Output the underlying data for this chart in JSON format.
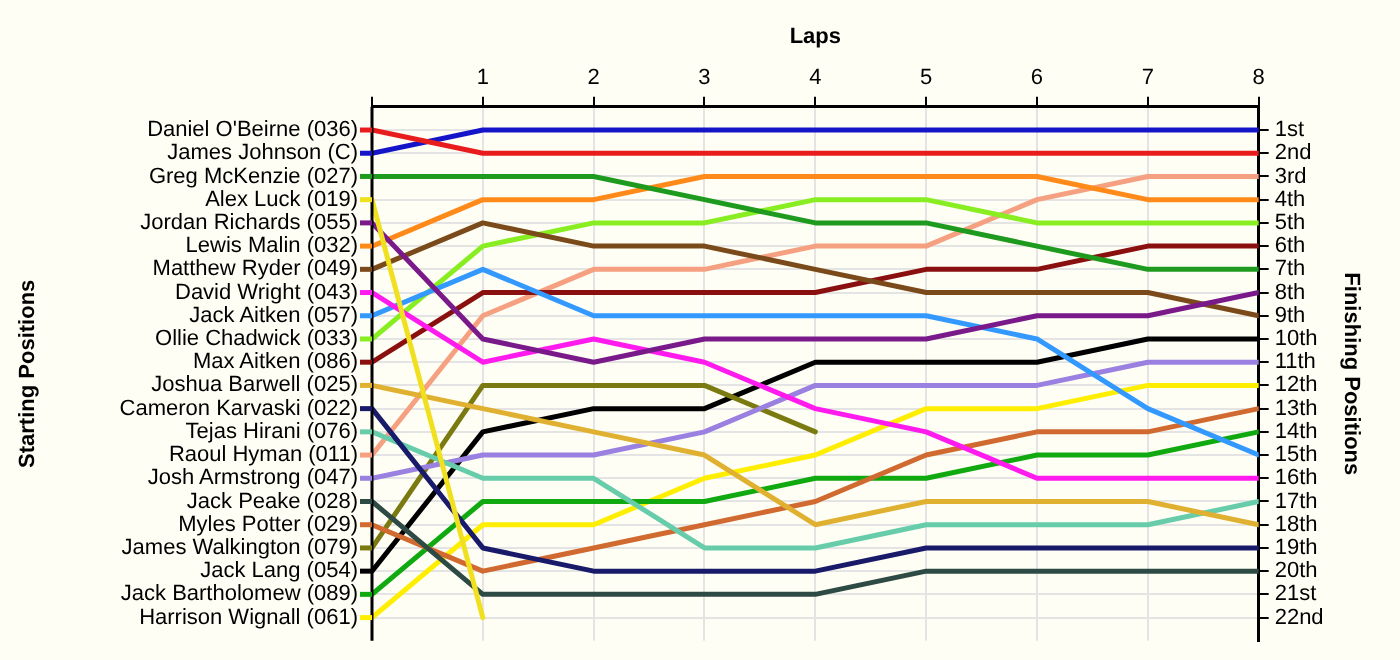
{
  "chart_data": {
    "type": "line",
    "xlabel": "Laps",
    "ylabel": "Finishing Positions",
    "x": [
      0,
      1,
      2,
      3,
      4,
      5,
      6,
      7,
      8
    ],
    "xlim": [
      0,
      8
    ],
    "xticks": [
      {
        "value": 0,
        "label": null
      },
      1,
      2,
      3,
      4,
      5,
      6,
      7,
      8
    ],
    "ylim": [
      23,
      0
    ],
    "yticks": [
      {
        "value": 1,
        "label": "1st"
      },
      {
        "value": 2,
        "label": "2nd"
      },
      {
        "value": 3,
        "label": "3rd"
      },
      {
        "value": 4,
        "label": "4th"
      },
      {
        "value": 5,
        "label": "5th"
      },
      {
        "value": 6,
        "label": "6th"
      },
      {
        "value": 7,
        "label": "7th"
      },
      {
        "value": 8,
        "label": "8th"
      },
      {
        "value": 9,
        "label": "9th"
      },
      {
        "value": 10,
        "label": "10th"
      },
      {
        "value": 11,
        "label": "11th"
      },
      {
        "value": 12,
        "label": "12th"
      },
      {
        "value": 13,
        "label": "13th"
      },
      {
        "value": 14,
        "label": "14th"
      },
      {
        "value": 15,
        "label": "15th"
      },
      {
        "value": 16,
        "label": "16th"
      },
      {
        "value": 17,
        "label": "17th"
      },
      {
        "value": 18,
        "label": "18th"
      },
      {
        "value": 19,
        "label": "19th"
      },
      {
        "value": 20,
        "label": "20th"
      },
      {
        "value": 21,
        "label": "21st"
      },
      {
        "value": 22,
        "label": "22nd"
      }
    ],
    "annotations": [
      "Starting Positions"
    ],
    "grid": true,
    "legend": "left",
    "marker": "none",
    "line_style": "solid",
    "series": [
      {
        "name": "Daniel O'Beirne (036)",
        "color": "#e81c1c",
        "values": [
          1,
          2,
          2,
          2,
          2,
          2,
          2,
          2,
          2
        ]
      },
      {
        "name": "James Johnson (C)",
        "color": "#1414c8",
        "values": [
          2,
          1,
          1,
          1,
          1,
          1,
          1,
          1,
          1
        ]
      },
      {
        "name": "Greg McKenzie (027)",
        "color": "#1e9a1e",
        "values": [
          3,
          3,
          3,
          4,
          5,
          5,
          6,
          7,
          7
        ]
      },
      {
        "name": "Alex Luck (019)",
        "color": "#f0e020",
        "values": [
          4,
          22,
          null,
          null,
          null,
          null,
          null,
          null,
          null
        ]
      },
      {
        "name": "Jordan Richards (055)",
        "color": "#7a1a8a",
        "values": [
          5,
          10,
          11,
          10,
          10,
          10,
          9,
          9,
          8
        ]
      },
      {
        "name": "Lewis Malin (032)",
        "color": "#ff8a1a",
        "values": [
          6,
          4,
          4,
          3,
          3,
          3,
          3,
          4,
          4
        ]
      },
      {
        "name": "Matthew Ryder (049)",
        "color": "#7a4a1a",
        "values": [
          7,
          5,
          6,
          6,
          7,
          8,
          8,
          8,
          9
        ]
      },
      {
        "name": "David Wright (043)",
        "color": "#ff1aee",
        "values": [
          8,
          11,
          10,
          11,
          13,
          14,
          16,
          16,
          16
        ]
      },
      {
        "name": "Jack Aitken (057)",
        "color": "#3399ff",
        "values": [
          9,
          7,
          9,
          9,
          9,
          9,
          10,
          13,
          15
        ]
      },
      {
        "name": "Ollie Chadwick (033)",
        "color": "#88ee22",
        "values": [
          10,
          6,
          5,
          5,
          4,
          4,
          5,
          5,
          5
        ]
      },
      {
        "name": "Max Aitken (086)",
        "color": "#8a1010",
        "values": [
          11,
          8,
          8,
          8,
          8,
          7,
          7,
          6,
          6
        ]
      },
      {
        "name": "Joshua Barwell (025)",
        "color": "#e0b030",
        "values": [
          12,
          13,
          14,
          15,
          18,
          17,
          17,
          17,
          18
        ]
      },
      {
        "name": "Cameron Karvaski (022)",
        "color": "#1a1a6a",
        "values": [
          13,
          19,
          20,
          20,
          20,
          19,
          19,
          19,
          19
        ]
      },
      {
        "name": "Tejas Hirani (076)",
        "color": "#66ccaa",
        "values": [
          14,
          16,
          16,
          19,
          19,
          18,
          18,
          18,
          17
        ]
      },
      {
        "name": "Raoul Hyman (011)",
        "color": "#f5a080",
        "values": [
          15,
          9,
          7,
          7,
          6,
          6,
          4,
          3,
          3
        ]
      },
      {
        "name": "Josh Armstrong (047)",
        "color": "#9a80e0",
        "values": [
          16,
          15,
          15,
          14,
          12,
          12,
          12,
          11,
          11
        ]
      },
      {
        "name": "Jack Peake (028)",
        "color": "#2e4a44",
        "values": [
          17,
          21,
          21,
          21,
          21,
          20,
          20,
          20,
          20
        ]
      },
      {
        "name": "Myles Potter (029)",
        "color": "#d06a30",
        "values": [
          18,
          20,
          19,
          18,
          17,
          15,
          14,
          14,
          13
        ]
      },
      {
        "name": "James Walkington (079)",
        "color": "#7a7a10",
        "values": [
          19,
          12,
          12,
          12,
          14,
          null,
          null,
          null,
          null
        ]
      },
      {
        "name": "Jack Lang (054)",
        "color": "#000000",
        "values": [
          20,
          14,
          13,
          13,
          11,
          11,
          11,
          10,
          10
        ]
      },
      {
        "name": "Jack Bartholomew (089)",
        "color": "#10aa10",
        "values": [
          21,
          17,
          17,
          17,
          16,
          16,
          15,
          15,
          14
        ]
      },
      {
        "name": "Harrison Wignall (061)",
        "color": "#ffee00",
        "values": [
          22,
          18,
          18,
          16,
          15,
          13,
          13,
          12,
          12
        ]
      }
    ]
  }
}
